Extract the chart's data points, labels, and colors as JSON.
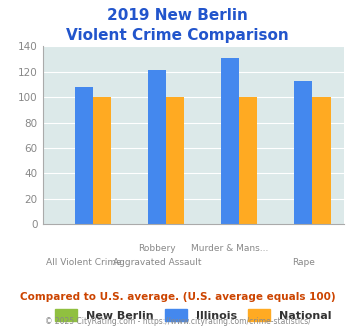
{
  "title_line1": "2019 New Berlin",
  "title_line2": "Violent Crime Comparison",
  "x_top_labels": [
    "",
    "Robbery",
    "Murder & Mans...",
    ""
  ],
  "x_bot_labels": [
    "All Violent Crime",
    "Aggravated Assault",
    "",
    "Rape"
  ],
  "series": {
    "New Berlin": {
      "color": "#90c040",
      "values": [
        0,
        0,
        0,
        0
      ]
    },
    "Illinois": {
      "color": "#4488ee",
      "values": [
        108,
        121,
        131,
        113
      ]
    },
    "National": {
      "color": "#ffaa22",
      "values": [
        100,
        100,
        100,
        100
      ]
    }
  },
  "ylim": [
    0,
    140
  ],
  "yticks": [
    0,
    20,
    40,
    60,
    80,
    100,
    120,
    140
  ],
  "bg_color": "#dce9e9",
  "title_color": "#2255cc",
  "axis_color": "#888888",
  "legend_labels": [
    "New Berlin",
    "Illinois",
    "National"
  ],
  "legend_colors": [
    "#90c040",
    "#4488ee",
    "#ffaa22"
  ],
  "footer_text": "Compared to U.S. average. (U.S. average equals 100)",
  "copyright_text": "© 2025 CityRating.com - https://www.cityrating.com/crime-statistics/",
  "footer_color": "#cc4400",
  "copyright_color": "#888888",
  "bar_width": 0.25
}
